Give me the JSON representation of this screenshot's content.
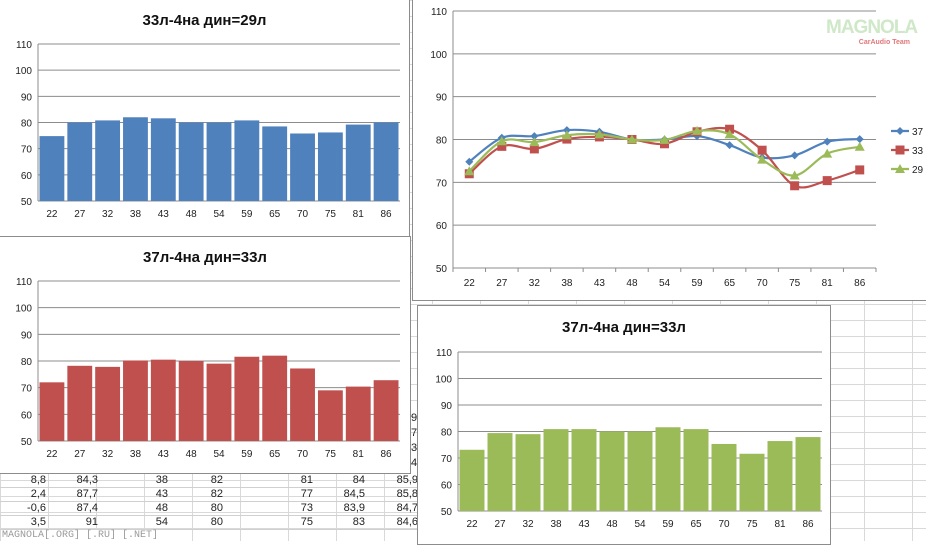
{
  "chart_data": [
    {
      "id": "blue",
      "type": "bar",
      "title": "33л-4на дин=29л",
      "categories": [
        "22",
        "27",
        "32",
        "38",
        "43",
        "48",
        "54",
        "59",
        "65",
        "70",
        "75",
        "81",
        "86"
      ],
      "values": [
        74.8,
        80,
        80.8,
        82,
        81.6,
        80,
        80,
        80.8,
        78.5,
        75.8,
        76.2,
        79.2,
        80
      ],
      "ylim": [
        50,
        110
      ],
      "yticks": [
        "50",
        "60",
        "70",
        "80",
        "90",
        "100",
        "110"
      ],
      "grid": true,
      "color": "#4f81bd"
    },
    {
      "id": "red",
      "type": "bar",
      "title": "37л-4на дин=33л",
      "categories": [
        "22",
        "27",
        "32",
        "38",
        "43",
        "48",
        "54",
        "59",
        "65",
        "70",
        "75",
        "81",
        "86"
      ],
      "values": [
        72,
        78.2,
        77.8,
        80.2,
        80.5,
        80,
        79,
        81.6,
        82,
        77.2,
        69,
        70.4,
        72.8
      ],
      "ylim": [
        50,
        110
      ],
      "yticks": [
        "50",
        "60",
        "70",
        "80",
        "90",
        "100",
        "110"
      ],
      "grid": true,
      "color": "#c0504d"
    },
    {
      "id": "lines",
      "type": "line",
      "title": "",
      "categories": [
        "22",
        "27",
        "32",
        "38",
        "43",
        "48",
        "54",
        "59",
        "65",
        "70",
        "75",
        "81",
        "86"
      ],
      "series": [
        {
          "name": "37",
          "values": [
            74.8,
            80.4,
            80.8,
            82.2,
            81.8,
            80,
            80,
            80.8,
            78.7,
            75.8,
            76.3,
            79.5,
            80.1
          ],
          "color": "#4f81bd",
          "marker": "diamond"
        },
        {
          "name": "33",
          "values": [
            72,
            78.4,
            77.8,
            80.1,
            80.6,
            80,
            79,
            81.8,
            82.4,
            77.5,
            69.2,
            70.4,
            72.9
          ],
          "color": "#c0504d",
          "marker": "square"
        },
        {
          "name": "29",
          "values": [
            72.6,
            79.6,
            79.4,
            81,
            81.2,
            80,
            79.9,
            82,
            81.2,
            75.3,
            71.6,
            76.7,
            78.3
          ],
          "color": "#9bbb59",
          "marker": "triangle"
        }
      ],
      "ylim": [
        50,
        110
      ],
      "yticks": [
        "50",
        "60",
        "70",
        "80",
        "90",
        "100",
        "110"
      ],
      "grid": true,
      "legend": "right"
    },
    {
      "id": "green",
      "type": "bar",
      "title": "37л-4на дин=33л",
      "categories": [
        "22",
        "27",
        "32",
        "38",
        "43",
        "48",
        "54",
        "59",
        "65",
        "70",
        "75",
        "81",
        "86"
      ],
      "values": [
        73.1,
        79.4,
        79,
        80.9,
        80.9,
        80,
        80,
        81.6,
        80.9,
        75.3,
        71.6,
        76.4,
        77.9
      ],
      "ylim": [
        50,
        110
      ],
      "yticks": [
        "50",
        "60",
        "70",
        "80",
        "90",
        "100",
        "110"
      ],
      "grid": true,
      "color": "#9bbb59"
    }
  ],
  "cells": [
    [
      "8,8",
      "84,3",
      "38",
      "82",
      "81",
      "84",
      "85,9"
    ],
    [
      "2,4",
      "87,7",
      "43",
      "82",
      "77",
      "84,5",
      "85,8"
    ],
    [
      "-0,6",
      "87,4",
      "48",
      "80",
      "73",
      "83,9",
      "84,7"
    ],
    [
      "3,5",
      "91",
      "54",
      "80",
      "75",
      "83",
      "84,6"
    ]
  ],
  "edge_digits": [
    "9",
    "7",
    "3",
    "4"
  ],
  "watermark": "MAGNOLA[.ORG] [.RU] [.NET]",
  "logo": {
    "main": "MAGNOLA",
    "sub": "CarAudio Team"
  }
}
